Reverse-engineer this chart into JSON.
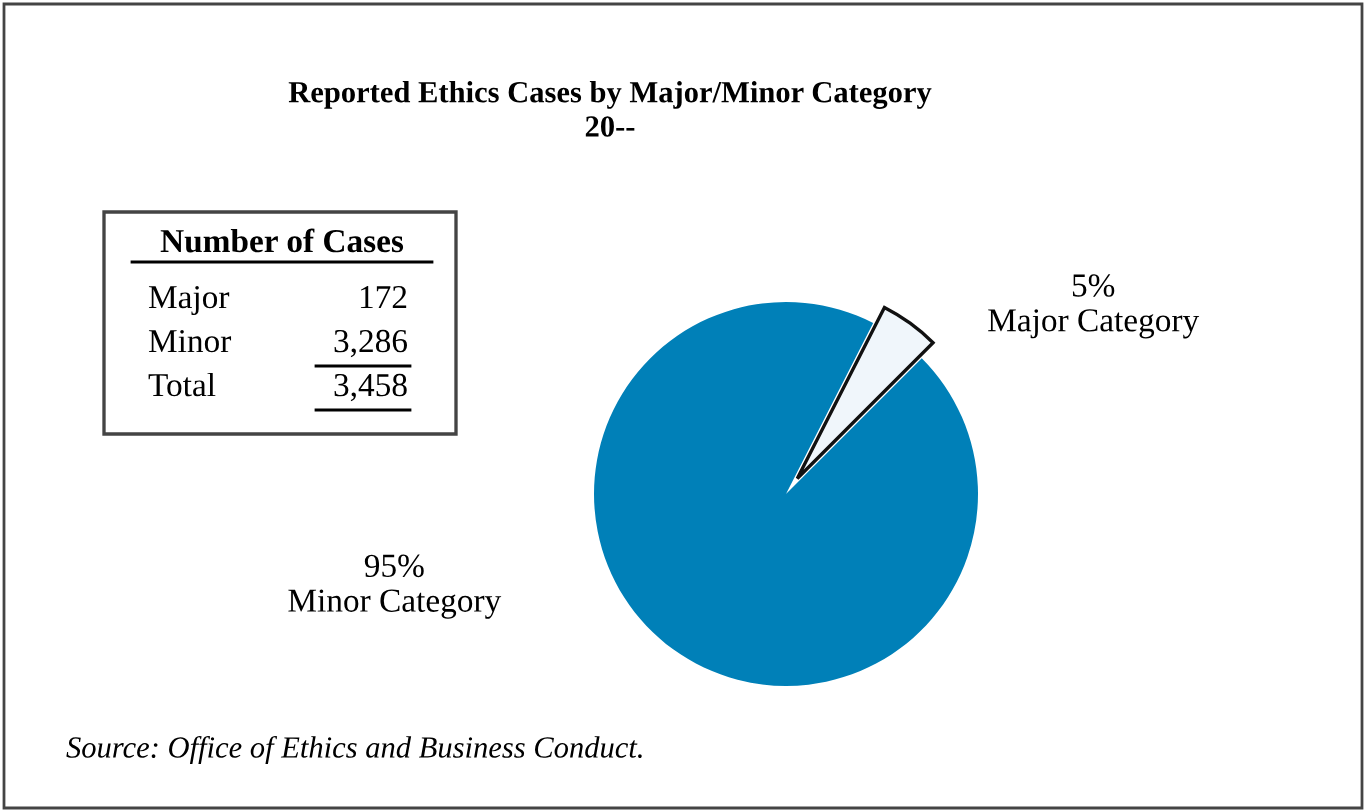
{
  "chart_data": {
    "type": "pie",
    "title": "Reported Ethics Cases by Major/Minor Category\n20--",
    "categories": [
      "Major Category",
      "Minor Category"
    ],
    "values": [
      5,
      95
    ],
    "value_labels": [
      "5%",
      "95%"
    ],
    "colors": [
      "#f0f6fb",
      "#0080b8"
    ],
    "annotations": [
      "Number of Cases",
      "Major",
      "172",
      "Minor",
      "3,286",
      "Total",
      "3,458",
      "Source: Office of Ethics and Business Conduct."
    ]
  }
}
